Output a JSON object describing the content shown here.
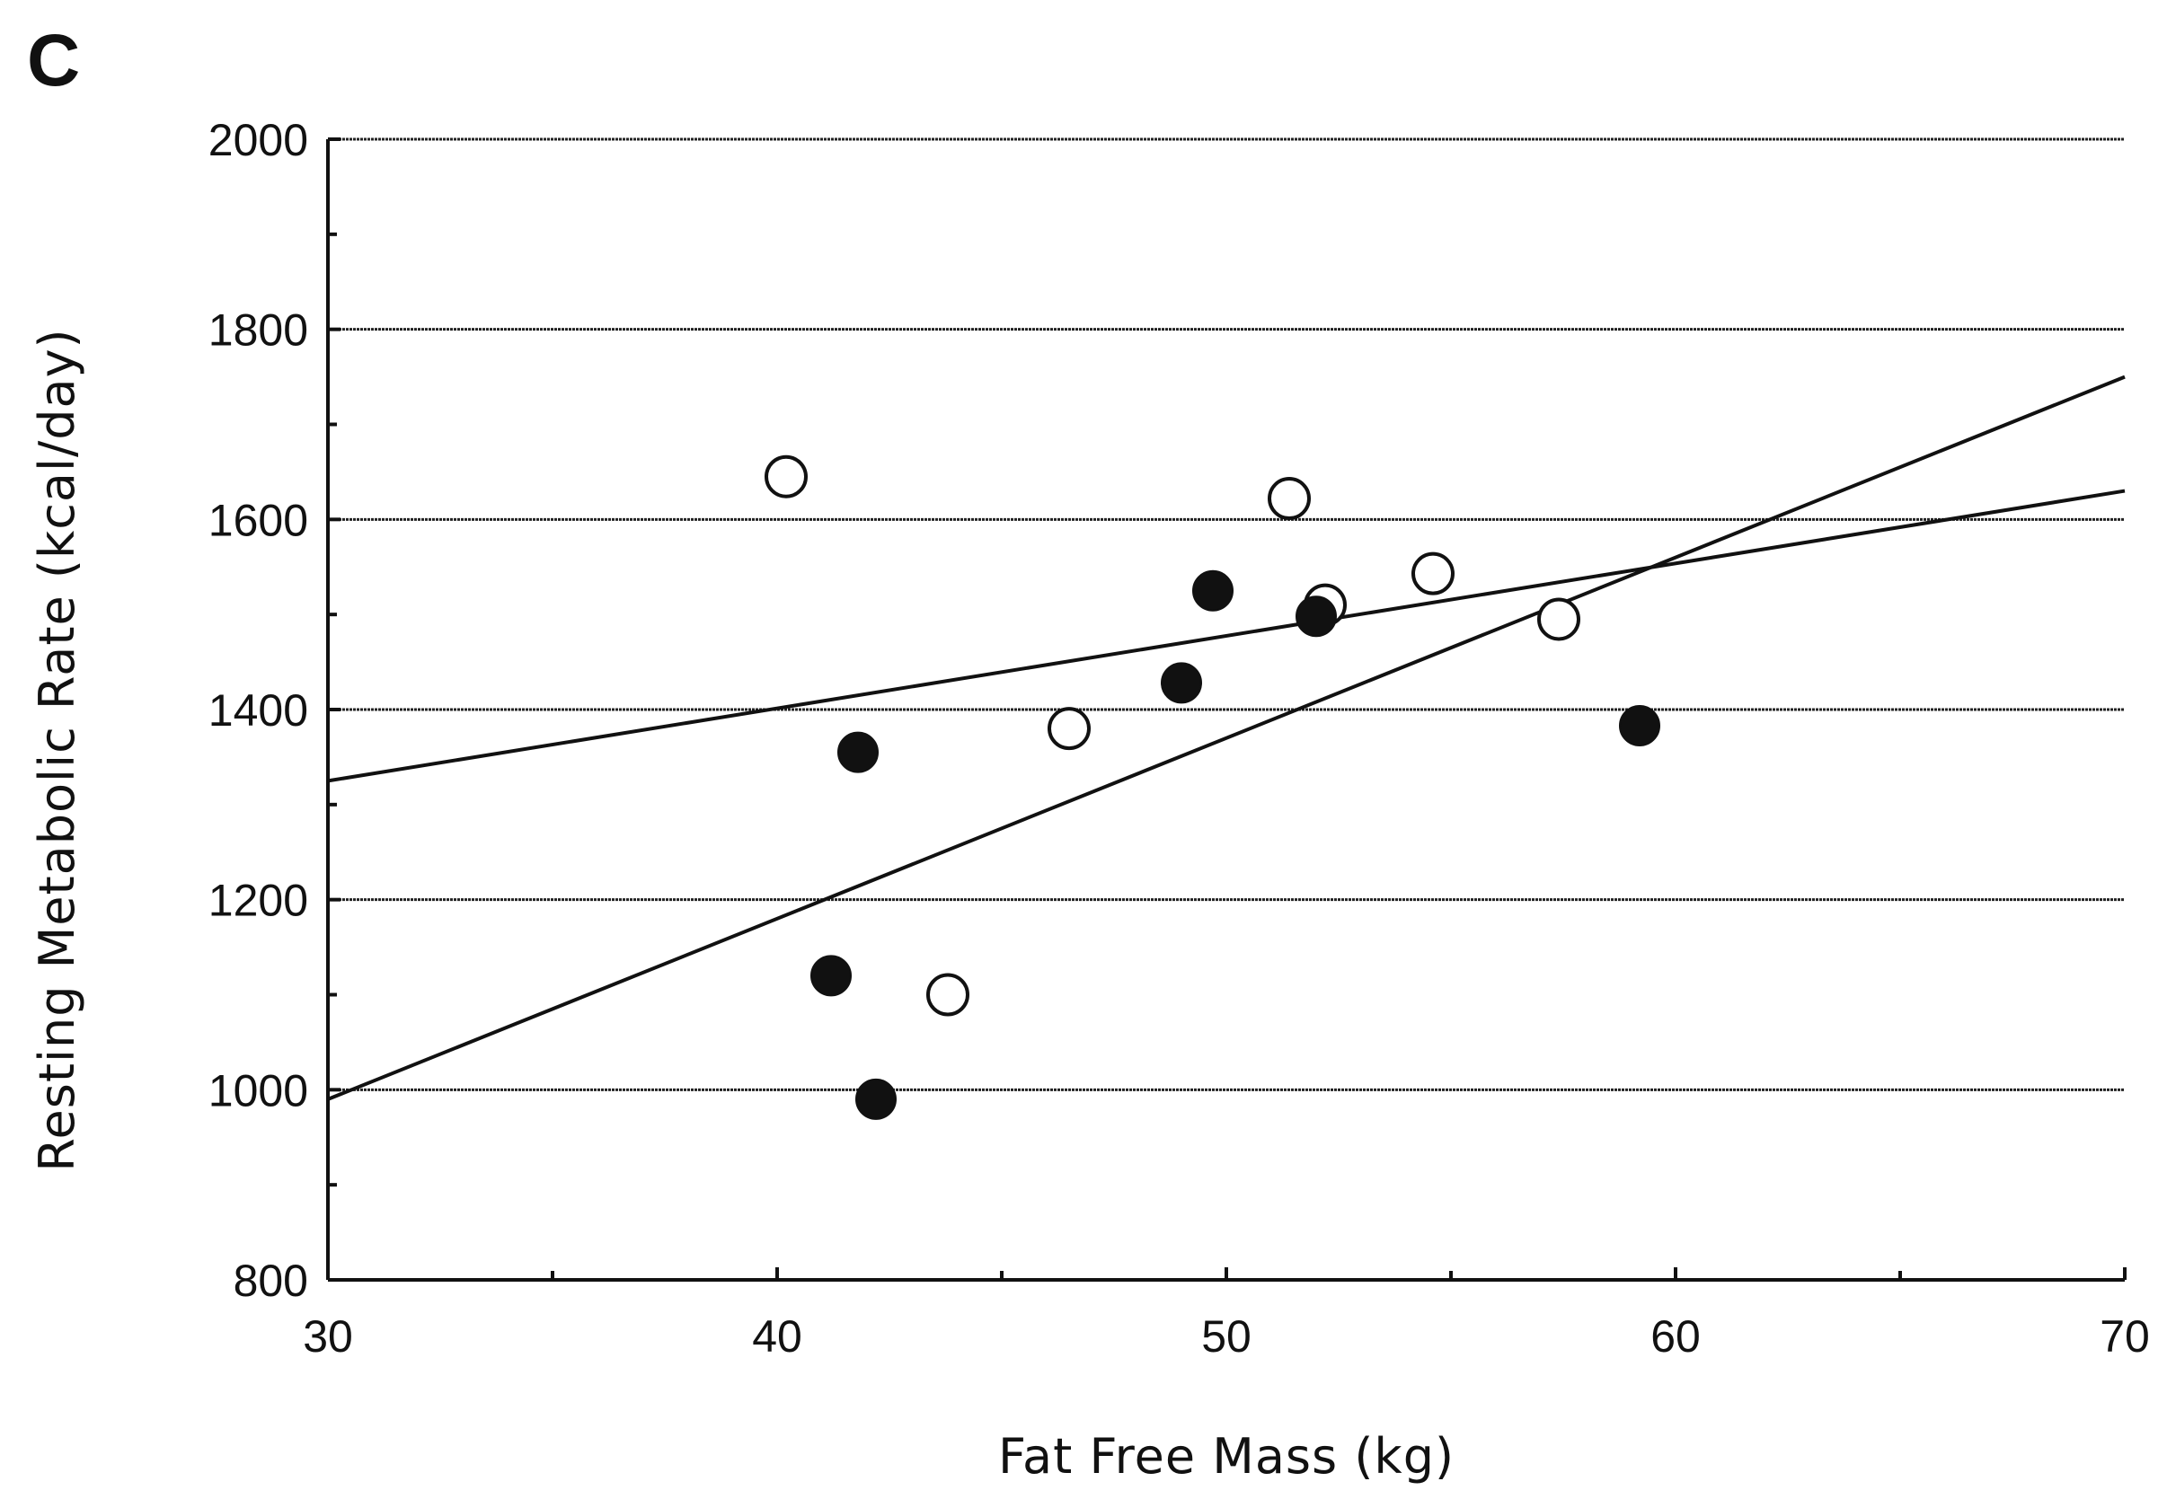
{
  "panel_label": "C",
  "colors": {
    "ink": "#111111",
    "grid": "#222222",
    "open_fill": "#ffffff",
    "filled_fill": "#111111"
  },
  "chart_data": {
    "type": "scatter",
    "title": "",
    "xlabel": "Fat Free Mass (kg)",
    "ylabel": "Resting Metabolic Rate (kcal/day)",
    "xlim": [
      30,
      70
    ],
    "ylim": [
      800,
      2000
    ],
    "x_ticks": [
      30,
      40,
      50,
      60,
      70
    ],
    "y_ticks": [
      800,
      1000,
      1200,
      1400,
      1600,
      1800,
      2000
    ],
    "x_tick_labels": [
      "30",
      "40",
      "50",
      "60",
      "70"
    ],
    "y_tick_labels": [
      "800",
      "1000",
      "1200",
      "1400",
      "1600",
      "1800",
      "2000"
    ],
    "grid": "horizontal",
    "legend": "none",
    "series": [
      {
        "marker": "open-circle",
        "points": [
          {
            "x": 40.2,
            "y": 1645
          },
          {
            "x": 43.8,
            "y": 1100
          },
          {
            "x": 46.5,
            "y": 1380
          },
          {
            "x": 51.4,
            "y": 1622
          },
          {
            "x": 52.2,
            "y": 1510
          },
          {
            "x": 54.6,
            "y": 1543
          },
          {
            "x": 57.4,
            "y": 1495
          }
        ]
      },
      {
        "marker": "filled-circle",
        "points": [
          {
            "x": 41.2,
            "y": 1120
          },
          {
            "x": 41.8,
            "y": 1355
          },
          {
            "x": 42.2,
            "y": 990
          },
          {
            "x": 49.0,
            "y": 1428
          },
          {
            "x": 49.7,
            "y": 1525
          },
          {
            "x": 52.0,
            "y": 1498
          },
          {
            "x": 59.2,
            "y": 1383
          }
        ]
      }
    ],
    "regression_lines": [
      {
        "x": [
          30,
          70
        ],
        "y": [
          1325,
          1630
        ]
      },
      {
        "x": [
          30,
          70
        ],
        "y": [
          990,
          1750
        ]
      }
    ]
  }
}
